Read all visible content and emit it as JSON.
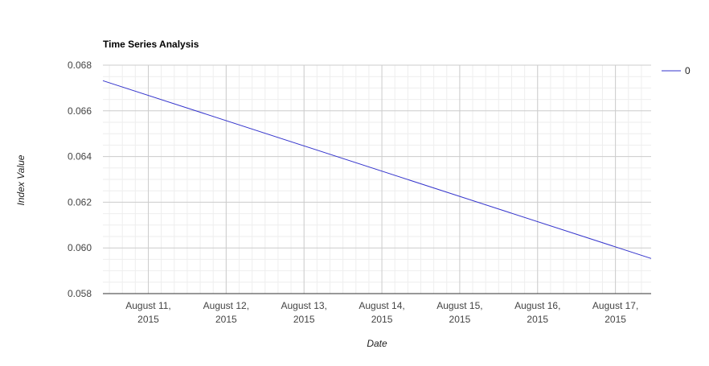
{
  "chart_data": {
    "type": "line",
    "title": "Time Series Analysis",
    "xlabel": "Date",
    "ylabel": "Index Value",
    "x_tick_labels": [
      {
        "line1": "August 11,",
        "line2": "2015"
      },
      {
        "line1": "August 12,",
        "line2": "2015"
      },
      {
        "line1": "August 13,",
        "line2": "2015"
      },
      {
        "line1": "August 14,",
        "line2": "2015"
      },
      {
        "line1": "August 15,",
        "line2": "2015"
      },
      {
        "line1": "August 16,",
        "line2": "2015"
      },
      {
        "line1": "August 17,",
        "line2": "2015"
      }
    ],
    "x_tick_dates": [
      "2015-08-11",
      "2015-08-12",
      "2015-08-13",
      "2015-08-14",
      "2015-08-15",
      "2015-08-16",
      "2015-08-17"
    ],
    "xlim": [
      "2015-08-10T10:00",
      "2015-08-17T11:00"
    ],
    "y_ticks": [
      "0.068",
      "0.066",
      "0.064",
      "0.062",
      "0.060",
      "0.058"
    ],
    "ylim": [
      0.058,
      0.068
    ],
    "grid": true,
    "legend_position": "right",
    "series": [
      {
        "name": "0",
        "color": "#3333cc",
        "x": [
          "2015-08-10T10:00",
          "2015-08-17T11:00"
        ],
        "values": [
          0.06732,
          0.05954
        ]
      }
    ]
  }
}
